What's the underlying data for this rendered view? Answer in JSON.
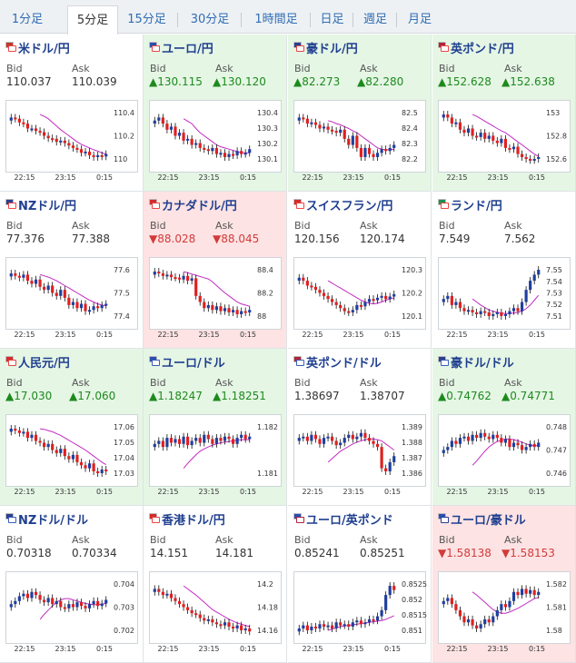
{
  "tabs": [
    {
      "label": "1分足",
      "active": false
    },
    {
      "label": "5分足",
      "active": true
    },
    {
      "label": "15分足",
      "active": false
    },
    {
      "label": "30分足",
      "active": false
    },
    {
      "label": "1時間足",
      "active": false
    },
    {
      "label": "日足",
      "active": false
    },
    {
      "label": "週足",
      "active": false
    },
    {
      "label": "月足",
      "active": false
    }
  ],
  "bid_label": "Bid",
  "ask_label": "Ask",
  "x_ticks": [
    "22:15",
    "23:15",
    "0:15"
  ],
  "colors": {
    "up_bg": "#e5f6e5",
    "down_bg": "#fde3e3",
    "up_text": "#1d8a1d",
    "down_text": "#d23b3b",
    "candle_up": "#1f3f9f",
    "candle_down": "#e02020",
    "ma": "#c22bc2",
    "ma2": "#2ba6c2"
  },
  "pairs": [
    {
      "name": "米ドル/円",
      "icon": "flags-usd-jpy",
      "flag_colors": [
        "#c0392b",
        "#e44"
      ],
      "bid": "110.037",
      "ask": "110.039",
      "trend": "flat",
      "chart_data": {
        "type": "candlestick",
        "yticks": [
          "110.4",
          "110.2",
          "110"
        ],
        "ylim": [
          109.93,
          110.49
        ],
        "shape": [
          0.8,
          0.78,
          0.72,
          0.7,
          0.62,
          0.62,
          0.58,
          0.56,
          0.5,
          0.46,
          0.45,
          0.4,
          0.42,
          0.38,
          0.34,
          0.3,
          0.28,
          0.22,
          0.24,
          0.18,
          0.15,
          0.18,
          0.16,
          0.2
        ],
        "ma": [
          0.85,
          0.82,
          0.78,
          0.72,
          0.66,
          0.6,
          0.55,
          0.5,
          0.45,
          0.4,
          0.36,
          0.33,
          0.3,
          0.27,
          0.25,
          0.22,
          0.2
        ]
      }
    },
    {
      "name": "ユーロ/円",
      "icon": "flags-eur-jpy",
      "flag_colors": [
        "#2b4fb0",
        "#e44"
      ],
      "bid": "130.115",
      "ask": "130.120",
      "trend": "up",
      "chart_data": {
        "type": "candlestick",
        "yticks": [
          "130.4",
          "130.3",
          "130.2",
          "130.1"
        ],
        "ylim": [
          130.02,
          130.43
        ],
        "shape": [
          0.75,
          0.8,
          0.7,
          0.6,
          0.65,
          0.5,
          0.55,
          0.42,
          0.45,
          0.35,
          0.38,
          0.3,
          0.28,
          0.25,
          0.3,
          0.2,
          0.22,
          0.15,
          0.2,
          0.18,
          0.25,
          0.2,
          0.22,
          0.28
        ],
        "ma": [
          0.78,
          0.74,
          0.7,
          0.62,
          0.55,
          0.5,
          0.45,
          0.4,
          0.35,
          0.32,
          0.3,
          0.28,
          0.26,
          0.24,
          0.22,
          0.22,
          0.22
        ]
      }
    },
    {
      "name": "豪ドル/円",
      "icon": "flags-aud-jpy",
      "flag_colors": [
        "#2b3f8f",
        "#e44"
      ],
      "bid": "82.273",
      "ask": "82.280",
      "trend": "up",
      "chart_data": {
        "type": "candlestick",
        "yticks": [
          "82.5",
          "82.4",
          "82.3",
          "82.2"
        ],
        "ylim": [
          82.17,
          82.53
        ],
        "shape": [
          0.8,
          0.78,
          0.7,
          0.72,
          0.68,
          0.62,
          0.65,
          0.6,
          0.58,
          0.55,
          0.6,
          0.45,
          0.35,
          0.5,
          0.3,
          0.15,
          0.3,
          0.2,
          0.15,
          0.22,
          0.28,
          0.25,
          0.3,
          0.35
        ],
        "ma": [
          0.75,
          0.73,
          0.7,
          0.68,
          0.65,
          0.62,
          0.58,
          0.55,
          0.5,
          0.45,
          0.4,
          0.35,
          0.3,
          0.28,
          0.27,
          0.27,
          0.28
        ]
      }
    },
    {
      "name": "英ポンド/円",
      "icon": "flags-gbp-jpy",
      "flag_colors": [
        "#b0243a",
        "#e44"
      ],
      "bid": "152.628",
      "ask": "152.638",
      "trend": "up",
      "chart_data": {
        "type": "candlestick",
        "yticks": [
          "153",
          "152.8",
          "152.6"
        ],
        "ylim": [
          152.55,
          153.12
        ],
        "shape": [
          0.85,
          0.8,
          0.7,
          0.72,
          0.6,
          0.55,
          0.62,
          0.5,
          0.48,
          0.55,
          0.45,
          0.5,
          0.42,
          0.38,
          0.45,
          0.3,
          0.28,
          0.32,
          0.2,
          0.15,
          0.12,
          0.1,
          0.12,
          0.15
        ],
        "ma": [
          0.85,
          0.82,
          0.78,
          0.74,
          0.7,
          0.66,
          0.62,
          0.58,
          0.55,
          0.5,
          0.45,
          0.4,
          0.35,
          0.3,
          0.25,
          0.2,
          0.16
        ]
      }
    },
    {
      "name": "NZドル/円",
      "icon": "flags-nzd-jpy",
      "flag_colors": [
        "#2b3f8f",
        "#e44"
      ],
      "bid": "77.376",
      "ask": "77.388",
      "trend": "flat",
      "chart_data": {
        "type": "candlestick",
        "yticks": [
          "77.6",
          "77.5",
          "77.4"
        ],
        "ylim": [
          77.3,
          77.66
        ],
        "shape": [
          0.82,
          0.78,
          0.75,
          0.8,
          0.7,
          0.65,
          0.72,
          0.6,
          0.55,
          0.62,
          0.5,
          0.45,
          0.55,
          0.42,
          0.3,
          0.35,
          0.25,
          0.32,
          0.2,
          0.22,
          0.28,
          0.25,
          0.3,
          0.32
        ],
        "ma": [
          0.8,
          0.78,
          0.76,
          0.73,
          0.7,
          0.66,
          0.62,
          0.58,
          0.54,
          0.5,
          0.46,
          0.42,
          0.38,
          0.35,
          0.32,
          0.3,
          0.29
        ]
      }
    },
    {
      "name": "カナダドル/円",
      "icon": "flags-cad-jpy",
      "flag_colors": [
        "#d42b2b",
        "#e44"
      ],
      "bid": "88.028",
      "ask": "88.045",
      "trend": "down",
      "chart_data": {
        "type": "candlestick",
        "yticks": [
          "88.4",
          "88.2",
          "88"
        ],
        "ylim": [
          87.93,
          88.52
        ],
        "shape": [
          0.85,
          0.82,
          0.78,
          0.8,
          0.76,
          0.75,
          0.72,
          0.78,
          0.7,
          0.74,
          0.45,
          0.35,
          0.25,
          0.3,
          0.22,
          0.28,
          0.2,
          0.25,
          0.18,
          0.22,
          0.15,
          0.2,
          0.18,
          0.22
        ],
        "ma": [
          0.85,
          0.83,
          0.81,
          0.79,
          0.77,
          0.75,
          0.73,
          0.68,
          0.62,
          0.56,
          0.5,
          0.45,
          0.4,
          0.35,
          0.32,
          0.3,
          0.28
        ]
      }
    },
    {
      "name": "スイスフラン/円",
      "icon": "flags-chf-jpy",
      "flag_colors": [
        "#d42b2b",
        "#e44"
      ],
      "bid": "120.156",
      "ask": "120.174",
      "trend": "flat",
      "chart_data": {
        "type": "candlestick",
        "yticks": [
          "120.3",
          "120.2",
          "120.1"
        ],
        "ylim": [
          120.02,
          120.33
        ],
        "shape": [
          0.75,
          0.7,
          0.62,
          0.6,
          0.55,
          0.5,
          0.45,
          0.4,
          0.35,
          0.3,
          0.25,
          0.2,
          0.18,
          0.22,
          0.3,
          0.28,
          0.35,
          0.4,
          0.38,
          0.42,
          0.45,
          0.4,
          0.44,
          0.48
        ],
        "ma": [
          0.7,
          0.66,
          0.62,
          0.58,
          0.54,
          0.5,
          0.46,
          0.42,
          0.38,
          0.35,
          0.33,
          0.32,
          0.33,
          0.35,
          0.38,
          0.4,
          0.42
        ]
      }
    },
    {
      "name": "ランド/円",
      "icon": "flags-zar-jpy",
      "flag_colors": [
        "#1f8f4f",
        "#e44"
      ],
      "bid": "7.549",
      "ask": "7.562",
      "trend": "flat",
      "chart_data": {
        "type": "candlestick",
        "yticks": [
          "7.55",
          "7.54",
          "7.53",
          "7.52",
          "7.51"
        ],
        "ylim": [
          7.505,
          7.558
        ],
        "shape": [
          0.4,
          0.45,
          0.3,
          0.35,
          0.25,
          0.2,
          0.22,
          0.18,
          0.15,
          0.2,
          0.18,
          0.12,
          0.15,
          0.18,
          0.12,
          0.15,
          0.2,
          0.25,
          0.2,
          0.35,
          0.55,
          0.7,
          0.8,
          0.88
        ],
        "ma": [
          0.4,
          0.35,
          0.3,
          0.26,
          0.22,
          0.2,
          0.18,
          0.17,
          0.16,
          0.16,
          0.17,
          0.18,
          0.2,
          0.24,
          0.3,
          0.38,
          0.46
        ]
      }
    },
    {
      "name": "人民元/円",
      "icon": "flags-cny-jpy",
      "flag_colors": [
        "#d42b2b",
        "#e44"
      ],
      "bid": "17.030",
      "ask": "17.060",
      "trend": "up",
      "chart_data": {
        "type": "candlestick",
        "yticks": [
          "17.06",
          "17.05",
          "17.04",
          "17.03"
        ],
        "ylim": [
          17.022,
          17.068
        ],
        "shape": [
          0.85,
          0.82,
          0.78,
          0.8,
          0.7,
          0.75,
          0.65,
          0.62,
          0.55,
          0.6,
          0.5,
          0.45,
          0.52,
          0.4,
          0.35,
          0.42,
          0.3,
          0.25,
          0.2,
          0.28,
          0.15,
          0.12,
          0.18,
          0.15
        ],
        "ma": [
          0.85,
          0.84,
          0.82,
          0.8,
          0.77,
          0.74,
          0.7,
          0.66,
          0.62,
          0.58,
          0.54,
          0.5,
          0.45,
          0.4,
          0.35,
          0.3,
          0.26
        ]
      }
    },
    {
      "name": "ユーロ/ドル",
      "icon": "flags-eur-usd",
      "flag_colors": [
        "#2b4fb0",
        "#3a5fb8"
      ],
      "bid": "1.18247",
      "ask": "1.18251",
      "trend": "up",
      "chart_data": {
        "type": "candlestick",
        "yticks": [
          "1.182",
          "1.181"
        ],
        "ylim": [
          1.1803,
          1.1828
        ],
        "shape": [
          0.6,
          0.65,
          0.55,
          0.7,
          0.62,
          0.68,
          0.6,
          0.72,
          0.58,
          0.65,
          0.7,
          0.62,
          0.75,
          0.68,
          0.6,
          0.7,
          0.65,
          0.72,
          0.68,
          0.6,
          0.7,
          0.75,
          0.68,
          0.72
        ],
        "ma": [
          0.2,
          0.28,
          0.35,
          0.42,
          0.48,
          0.52,
          0.55,
          0.58,
          0.6,
          0.62,
          0.63,
          0.64,
          0.65,
          0.66,
          0.67,
          0.67,
          0.67
        ]
      }
    },
    {
      "name": "英ポンド/ドル",
      "icon": "flags-gbp-usd",
      "flag_colors": [
        "#b0243a",
        "#3a5fb8"
      ],
      "bid": "1.38697",
      "ask": "1.38707",
      "trend": "flat",
      "chart_data": {
        "type": "candlestick",
        "yticks": [
          "1.389",
          "1.388",
          "1.387",
          "1.386"
        ],
        "ylim": [
          1.3855,
          1.3895
        ],
        "shape": [
          0.7,
          0.72,
          0.65,
          0.75,
          0.68,
          0.6,
          0.7,
          0.72,
          0.65,
          0.58,
          0.62,
          0.7,
          0.75,
          0.68,
          0.72,
          0.78,
          0.7,
          0.65,
          0.6,
          0.55,
          0.2,
          0.15,
          0.3,
          0.4
        ],
        "ma": [
          0.3,
          0.36,
          0.42,
          0.48,
          0.52,
          0.56,
          0.6,
          0.63,
          0.65,
          0.67,
          0.68,
          0.68,
          0.67,
          0.65,
          0.6,
          0.55,
          0.5
        ]
      }
    },
    {
      "name": "豪ドル/ドル",
      "icon": "flags-aud-usd",
      "flag_colors": [
        "#2b3f8f",
        "#3a5fb8"
      ],
      "bid": "0.74762",
      "ask": "0.74771",
      "trend": "up",
      "chart_data": {
        "type": "candlestick",
        "yticks": [
          "0.748",
          "0.747",
          "0.746"
        ],
        "ylim": [
          0.7456,
          0.7485
        ],
        "shape": [
          0.5,
          0.55,
          0.65,
          0.6,
          0.7,
          0.72,
          0.65,
          0.75,
          0.7,
          0.78,
          0.72,
          0.68,
          0.75,
          0.7,
          0.62,
          0.68,
          0.55,
          0.62,
          0.58,
          0.5,
          0.55,
          0.6,
          0.55,
          0.62
        ],
        "ma": [
          0.25,
          0.32,
          0.4,
          0.48,
          0.55,
          0.6,
          0.64,
          0.66,
          0.68,
          0.68,
          0.67,
          0.65,
          0.63,
          0.6,
          0.58,
          0.57,
          0.57
        ]
      }
    },
    {
      "name": "NZドル/ドル",
      "icon": "flags-nzd-usd",
      "flag_colors": [
        "#2b3f8f",
        "#3a5fb8"
      ],
      "bid": "0.70318",
      "ask": "0.70334",
      "trend": "flat",
      "chart_data": {
        "type": "candlestick",
        "yticks": [
          "0.704",
          "0.703",
          "0.702"
        ],
        "ylim": [
          0.7015,
          0.7043
        ],
        "shape": [
          0.55,
          0.6,
          0.68,
          0.72,
          0.65,
          0.75,
          0.7,
          0.62,
          0.58,
          0.65,
          0.55,
          0.6,
          0.5,
          0.48,
          0.55,
          0.5,
          0.58,
          0.52,
          0.48,
          0.55,
          0.6,
          0.52,
          0.56,
          0.62
        ],
        "ma": [
          0.3,
          0.38,
          0.45,
          0.52,
          0.58,
          0.62,
          0.64,
          0.64,
          0.62,
          0.6,
          0.58,
          0.56,
          0.55,
          0.54,
          0.54,
          0.55,
          0.56
        ]
      }
    },
    {
      "name": "香港ドル/円",
      "icon": "flags-hkd-jpy",
      "flag_colors": [
        "#d42b2b",
        "#e44"
      ],
      "bid": "14.151",
      "ask": "14.181",
      "trend": "flat",
      "chart_data": {
        "type": "candlestick",
        "yticks": [
          "14.2",
          "14.18",
          "14.16"
        ],
        "ylim": [
          14.142,
          14.205
        ],
        "shape": [
          0.8,
          0.75,
          0.7,
          0.72,
          0.65,
          0.6,
          0.55,
          0.5,
          0.45,
          0.4,
          0.38,
          0.32,
          0.28,
          0.3,
          0.25,
          0.22,
          0.2,
          0.25,
          0.18,
          0.15,
          0.2,
          0.12,
          0.15,
          0.1
        ],
        "ma": [
          0.85,
          0.8,
          0.75,
          0.7,
          0.64,
          0.58,
          0.52,
          0.46,
          0.42,
          0.38,
          0.34,
          0.3,
          0.27,
          0.24,
          0.22,
          0.2,
          0.18
        ]
      }
    },
    {
      "name": "ユーロ/英ポンド",
      "icon": "flags-eur-gbp",
      "flag_colors": [
        "#2b4fb0",
        "#b0243a"
      ],
      "bid": "0.85241",
      "ask": "0.85251",
      "trend": "flat",
      "chart_data": {
        "type": "candlestick",
        "yticks": [
          "0.8525",
          "0.852",
          "0.8515",
          "0.851"
        ],
        "ylim": [
          0.8507,
          0.8528
        ],
        "shape": [
          0.15,
          0.2,
          0.12,
          0.18,
          0.15,
          0.22,
          0.18,
          0.2,
          0.15,
          0.25,
          0.2,
          0.22,
          0.18,
          0.25,
          0.28,
          0.22,
          0.25,
          0.3,
          0.28,
          0.35,
          0.45,
          0.7,
          0.85,
          0.78
        ],
        "ma": [
          0.12,
          0.14,
          0.16,
          0.18,
          0.19,
          0.2,
          0.21,
          0.22,
          0.23,
          0.24,
          0.25,
          0.26,
          0.27,
          0.28,
          0.3,
          0.33,
          0.36
        ]
      }
    },
    {
      "name": "ユーロ/豪ドル",
      "icon": "flags-eur-aud",
      "flag_colors": [
        "#2b4fb0",
        "#2b3f8f"
      ],
      "bid": "1.58138",
      "ask": "1.58153",
      "trend": "down",
      "chart_data": {
        "type": "candlestick",
        "yticks": [
          "1.582",
          "1.581",
          "1.58"
        ],
        "ylim": [
          1.5794,
          1.5825
        ],
        "shape": [
          0.6,
          0.65,
          0.55,
          0.45,
          0.35,
          0.25,
          0.3,
          0.2,
          0.15,
          0.22,
          0.3,
          0.25,
          0.35,
          0.45,
          0.55,
          0.5,
          0.6,
          0.75,
          0.7,
          0.8,
          0.72,
          0.78,
          0.7,
          0.75
        ],
        "ma": [
          0.75,
          0.7,
          0.64,
          0.58,
          0.52,
          0.46,
          0.42,
          0.4,
          0.4,
          0.42,
          0.45,
          0.48,
          0.52,
          0.56,
          0.6,
          0.64,
          0.66
        ]
      }
    }
  ]
}
